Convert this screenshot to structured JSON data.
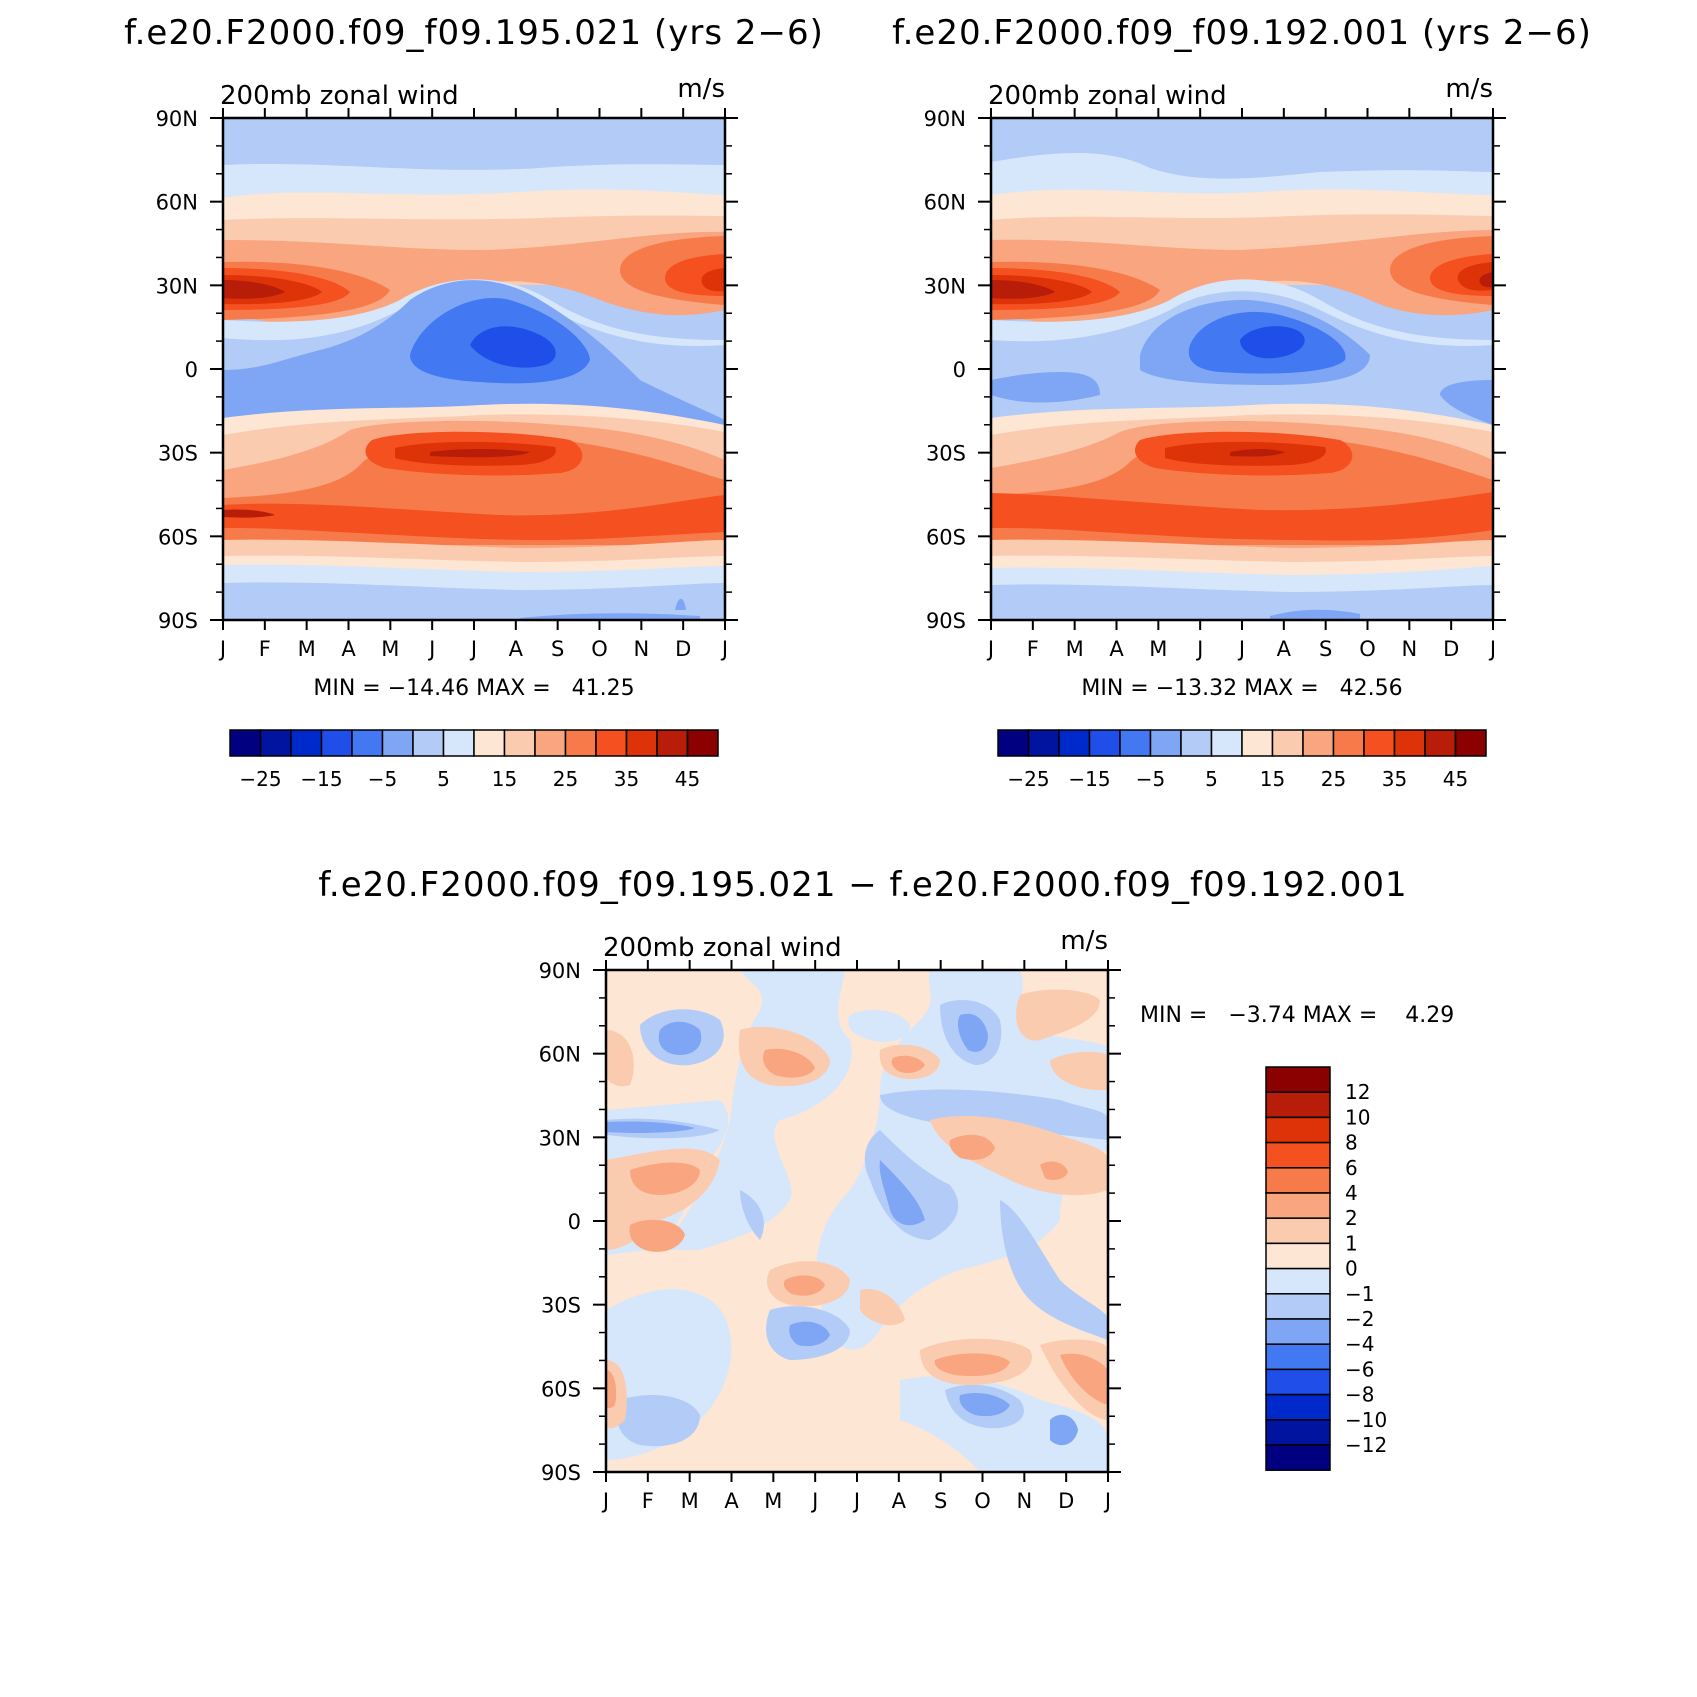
{
  "chart_data": [
    {
      "type": "heatmap",
      "title": "f.e20.F2000.f09_f09.195.021 (yrs 2−6)",
      "subtitle_left": "200mb zonal wind",
      "subtitle_right": "m/s",
      "x_ticks": [
        "J",
        "F",
        "M",
        "A",
        "M",
        "J",
        "J",
        "A",
        "S",
        "O",
        "N",
        "D",
        "J"
      ],
      "y_ticks": [
        "90N",
        "60N",
        "30N",
        "0",
        "30S",
        "60S",
        "90S"
      ],
      "stats": "MIN = −14.46 MAX =   41.25",
      "min": -14.46,
      "max": 41.25,
      "features": [
        {
          "name": "NH subtropical jet (winter)",
          "month": 1.0,
          "lat": 30,
          "value": 41
        },
        {
          "name": "NH subtropical jet (late year)",
          "month": 12.5,
          "lat": 32,
          "value": 38
        },
        {
          "name": "SH subtropical jet",
          "month": 7.0,
          "lat": -30,
          "value": 40
        },
        {
          "name": "SH polar-front jet",
          "month": 1.0,
          "lat": -51,
          "value": 38
        },
        {
          "name": "Tropical easterlies",
          "month": 7.5,
          "lat": 8,
          "value": -14
        }
      ]
    },
    {
      "type": "heatmap",
      "title": "f.e20.F2000.f09_f09.192.001 (yrs 2−6)",
      "subtitle_left": "200mb zonal wind",
      "subtitle_right": "m/s",
      "x_ticks": [
        "J",
        "F",
        "M",
        "A",
        "M",
        "J",
        "J",
        "A",
        "S",
        "O",
        "N",
        "D",
        "J"
      ],
      "y_ticks": [
        "90N",
        "60N",
        "30N",
        "0",
        "30S",
        "60S",
        "90S"
      ],
      "stats": "MIN = −13.32 MAX =   42.56",
      "min": -13.32,
      "max": 42.56,
      "features": [
        {
          "name": "NH subtropical jet (winter)",
          "month": 1.0,
          "lat": 30,
          "value": 42
        },
        {
          "name": "NH subtropical jet (late year)",
          "month": 12.5,
          "lat": 32,
          "value": 39
        },
        {
          "name": "SH subtropical jet",
          "month": 7.0,
          "lat": -30,
          "value": 41
        },
        {
          "name": "SH polar-front jet",
          "month": 1.0,
          "lat": -52,
          "value": 37
        },
        {
          "name": "Tropical easterlies",
          "month": 7.5,
          "lat": 8,
          "value": -13
        }
      ]
    },
    {
      "type": "heatmap",
      "title": "f.e20.F2000.f09_f09.195.021 − f.e20.F2000.f09_f09.192.001",
      "subtitle_left": "200mb zonal wind",
      "subtitle_right": "m/s",
      "x_ticks": [
        "J",
        "F",
        "M",
        "A",
        "M",
        "J",
        "J",
        "A",
        "S",
        "O",
        "N",
        "D",
        "J"
      ],
      "y_ticks": [
        "90N",
        "60N",
        "30N",
        "0",
        "30S",
        "60S",
        "90S"
      ],
      "stats": "MIN =   −3.74 MAX =    4.29",
      "min": -3.74,
      "max": 4.29
    }
  ],
  "colorbar_abs": {
    "colors": [
      "#000080",
      "#0014a0",
      "#0029cc",
      "#1f4fe8",
      "#4278f2",
      "#7fa6f5",
      "#b3ccf7",
      "#d7e7fb",
      "#fde6d4",
      "#fbcbb0",
      "#f9a57f",
      "#f77b4a",
      "#f45020",
      "#de3208",
      "#b81d0a",
      "#8b0000"
    ],
    "labels": [
      "−25",
      "−15",
      "−5",
      "5",
      "15",
      "25",
      "35",
      "45"
    ]
  },
  "colorbar_diff": {
    "colors": [
      "#8b0000",
      "#b81d0a",
      "#de3208",
      "#f45020",
      "#f77b4a",
      "#f9a57f",
      "#fbcbb0",
      "#fde6d4",
      "#d7e7fb",
      "#b3ccf7",
      "#7fa6f5",
      "#4278f2",
      "#1f4fe8",
      "#0029cc",
      "#0014a0",
      "#000080"
    ],
    "labels": [
      "12",
      "10",
      "8",
      "6",
      "4",
      "2",
      "1",
      "0",
      "−1",
      "−2",
      "−4",
      "−6",
      "−8",
      "−10",
      "−12"
    ]
  }
}
